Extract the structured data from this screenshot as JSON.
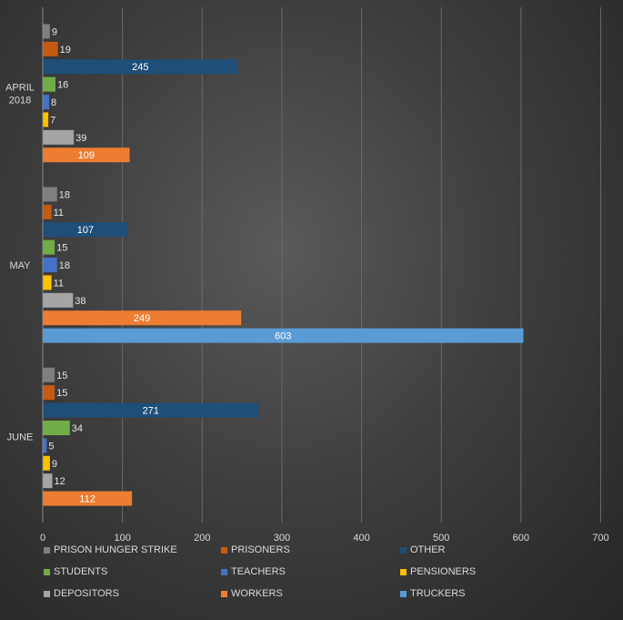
{
  "chart_data": {
    "type": "bar",
    "orientation": "horizontal",
    "categories": [
      "APRIL 2018",
      "MAY",
      "JUNE"
    ],
    "series": [
      {
        "name": "PRISON HUNGER STRIKE",
        "color": "#7f7f7f",
        "values": [
          9,
          18,
          15
        ]
      },
      {
        "name": "PRISONERS",
        "color": "#c55a11",
        "values": [
          19,
          11,
          15
        ]
      },
      {
        "name": "OTHER",
        "color": "#1f4e79",
        "values": [
          245,
          107,
          271
        ]
      },
      {
        "name": "STUDENTS",
        "color": "#70ad47",
        "values": [
          16,
          15,
          34
        ]
      },
      {
        "name": "TEACHERS",
        "color": "#4472c4",
        "values": [
          8,
          18,
          5
        ]
      },
      {
        "name": "PENSIONERS",
        "color": "#ffc000",
        "values": [
          7,
          11,
          9
        ]
      },
      {
        "name": "DEPOSITORS",
        "color": "#a5a5a5",
        "values": [
          39,
          38,
          12
        ]
      },
      {
        "name": "WORKERS",
        "color": "#ed7d31",
        "values": [
          109,
          249,
          112
        ]
      },
      {
        "name": "TRUCKERS",
        "color": "#5b9bd5",
        "values": [
          null,
          603,
          null
        ]
      }
    ],
    "xlim": [
      0,
      700
    ],
    "xticks": [
      0,
      100,
      200,
      300,
      400,
      500,
      600,
      700
    ],
    "grid": "vertical",
    "legend": "bottom"
  }
}
